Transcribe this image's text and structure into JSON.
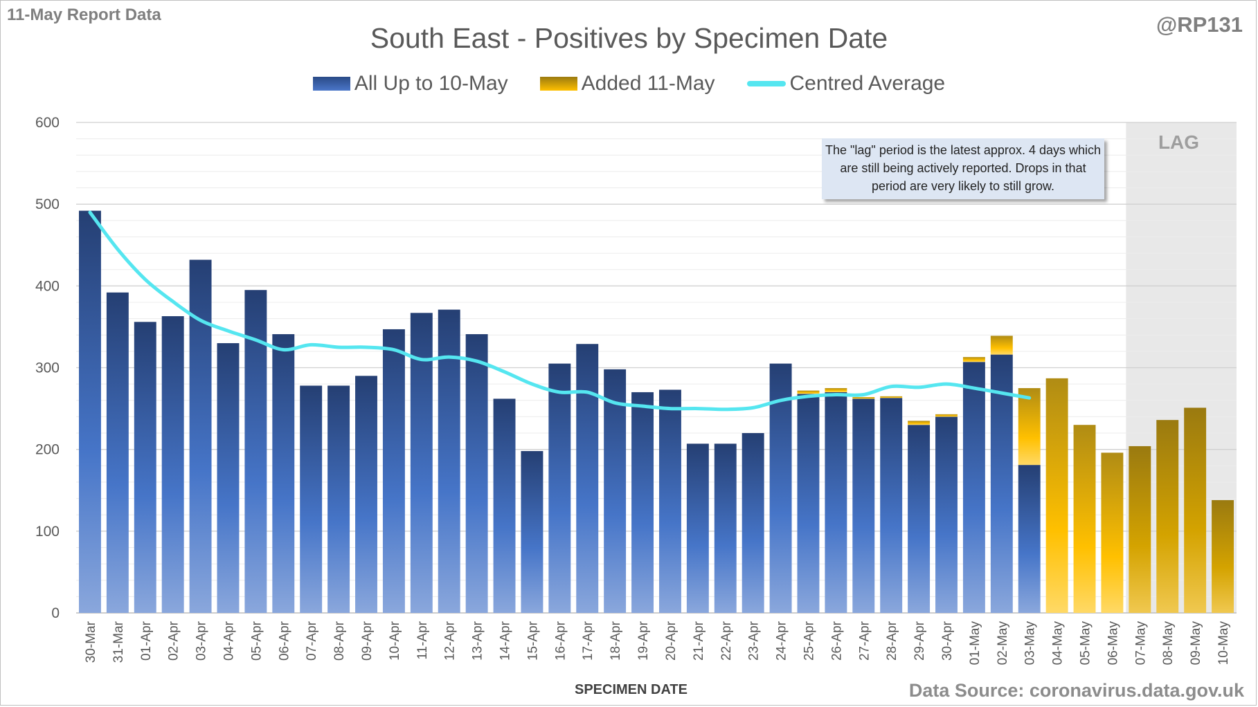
{
  "header": {
    "report_label": "11-May Report Data",
    "handle": "@RP131"
  },
  "chart_data": {
    "type": "bar",
    "stacked": true,
    "title": "South East - Positives by Specimen Date",
    "xlabel": "SPECIMEN DATE",
    "ylabel": "",
    "ylim": [
      0,
      600
    ],
    "yticks": [
      0,
      100,
      200,
      300,
      400,
      500,
      600
    ],
    "grid": true,
    "legend_position": "top",
    "categories": [
      "30-Mar",
      "31-Mar",
      "01-Apr",
      "02-Apr",
      "03-Apr",
      "04-Apr",
      "05-Apr",
      "06-Apr",
      "07-Apr",
      "08-Apr",
      "09-Apr",
      "10-Apr",
      "11-Apr",
      "12-Apr",
      "13-Apr",
      "14-Apr",
      "15-Apr",
      "16-Apr",
      "17-Apr",
      "18-Apr",
      "19-Apr",
      "20-Apr",
      "21-Apr",
      "22-Apr",
      "23-Apr",
      "24-Apr",
      "25-Apr",
      "26-Apr",
      "27-Apr",
      "28-Apr",
      "29-Apr",
      "30-Apr",
      "01-May",
      "02-May",
      "03-May",
      "04-May",
      "05-May",
      "06-May",
      "07-May",
      "08-May",
      "09-May",
      "10-May"
    ],
    "series": [
      {
        "name": "All Up to 10-May",
        "color": "#3f68b4",
        "values": [
          492,
          392,
          356,
          363,
          432,
          330,
          395,
          341,
          278,
          278,
          290,
          347,
          367,
          371,
          341,
          262,
          198,
          305,
          329,
          298,
          270,
          273,
          207,
          207,
          220,
          305,
          268,
          270,
          262,
          263,
          230,
          240,
          307,
          316,
          181,
          0,
          0,
          0,
          0,
          0,
          0,
          0
        ]
      },
      {
        "name": "Added 11-May",
        "color": "#ffc000",
        "values": [
          0,
          0,
          0,
          0,
          0,
          0,
          0,
          0,
          0,
          0,
          0,
          0,
          0,
          0,
          0,
          0,
          0,
          0,
          0,
          0,
          0,
          0,
          0,
          0,
          0,
          0,
          4,
          5,
          2,
          2,
          5,
          3,
          6,
          23,
          94,
          287,
          230,
          196,
          204,
          236,
          251,
          138
        ]
      },
      {
        "name": "Centred Average",
        "type": "line",
        "color": "#55e6f0",
        "values": [
          490,
          445,
          408,
          381,
          358,
          345,
          334,
          322,
          328,
          325,
          325,
          322,
          310,
          313,
          308,
          295,
          280,
          270,
          270,
          257,
          253,
          250,
          250,
          249,
          251,
          260,
          265,
          267,
          267,
          277,
          276,
          280,
          275,
          269,
          263,
          null,
          null,
          null,
          null,
          null,
          null,
          null
        ]
      }
    ],
    "annotations": {
      "note": "The \"lag\" period is the latest approx. 4 days which are still being actively reported. Drops in that period are very likely to still grow.",
      "lag_label": "LAG",
      "lag_start": "07-May",
      "lag_end": "10-May"
    }
  },
  "footer": {
    "source": "Data Source: coronavirus.data.gov.uk"
  }
}
